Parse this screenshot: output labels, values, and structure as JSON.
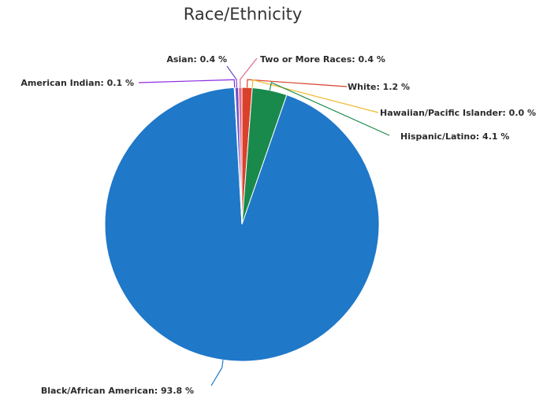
{
  "chart_data": {
    "type": "pie",
    "title": "Race/Ethnicity",
    "slices": [
      {
        "label": "White",
        "value": 1.2,
        "display": "White: 1.2 %",
        "color": "#d9412b"
      },
      {
        "label": "Hawaiian/Pacific Islander",
        "value": 0.0,
        "display": "Hawaiian/Pacific Islander: 0.0 %",
        "color": "#f2b92e"
      },
      {
        "label": "Hispanic/Latino",
        "value": 4.1,
        "display": "Hispanic/Latino: 4.1 %",
        "color": "#1a8a4c"
      },
      {
        "label": "Black/African American",
        "value": 93.8,
        "display": "Black/African American: 93.8 %",
        "color": "#1f78c8"
      },
      {
        "label": "American Indian",
        "value": 0.1,
        "display": "American Indian: 0.1 %",
        "color": "#8a2be2"
      },
      {
        "label": "Asian",
        "value": 0.4,
        "display": "Asian: 0.4 %",
        "color": "#6a4fc9"
      },
      {
        "label": "Two or More Races",
        "value": 0.4,
        "display": "Two or More Races: 0.4 %",
        "color": "#e36a8a"
      }
    ],
    "legend": "none"
  }
}
